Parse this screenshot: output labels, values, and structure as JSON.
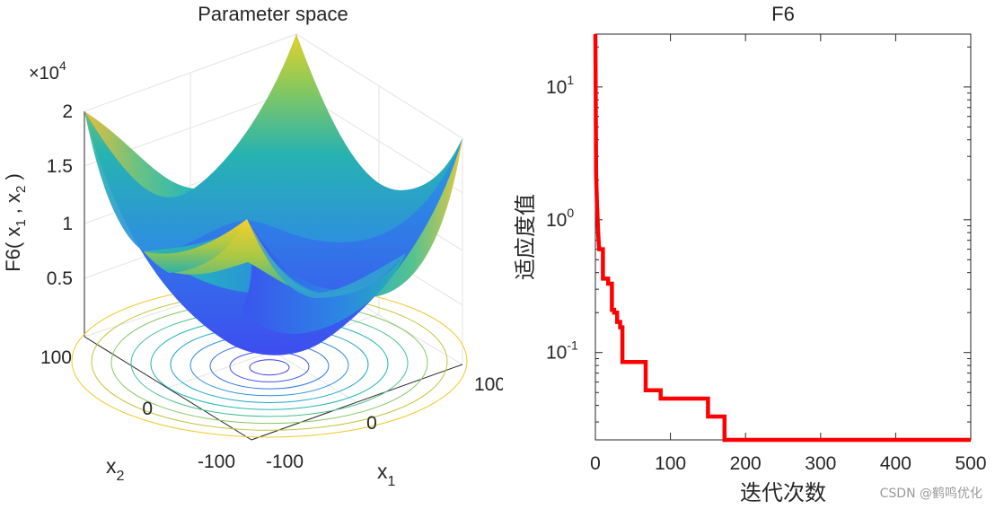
{
  "chart_data": [
    {
      "type": "surface",
      "title": "Parameter space",
      "zlabel": "F6( x_1 , x_2 )",
      "xlabel": "x_1",
      "ylabel": "x_2",
      "z_exponent": "×10^4",
      "z_ticks": [
        "0.5",
        "1",
        "1.5",
        "2"
      ],
      "x_ticks": [
        "-100",
        "0",
        "100"
      ],
      "y_ticks": [
        "-100",
        "0",
        "100"
      ],
      "xlim": [
        -100,
        100
      ],
      "ylim": [
        -100,
        100
      ],
      "zlim": [
        0,
        20000
      ],
      "function": "sum of squares (x1^2 + x2^2)",
      "contour_levels": 10,
      "colormap": "parula"
    },
    {
      "type": "line",
      "title": "F6",
      "xlabel": "迭代次数",
      "ylabel": "适应度值",
      "yscale": "log",
      "xlim": [
        0,
        500
      ],
      "ylim": [
        0.022,
        25
      ],
      "x_ticks": [
        "0",
        "100",
        "200",
        "300",
        "400",
        "500"
      ],
      "y_ticks": [
        {
          "base": "10",
          "exp": "-1",
          "value": 0.1
        },
        {
          "base": "10",
          "exp": "0",
          "value": 1
        },
        {
          "base": "10",
          "exp": "1",
          "value": 10
        }
      ],
      "series_color": "#ff0000",
      "points": [
        [
          0,
          25
        ],
        [
          1,
          2.2
        ],
        [
          2,
          1.35
        ],
        [
          3,
          1.0
        ],
        [
          4,
          0.75
        ],
        [
          5,
          0.6
        ],
        [
          10,
          0.6
        ],
        [
          10,
          0.36
        ],
        [
          17,
          0.36
        ],
        [
          17,
          0.33
        ],
        [
          22,
          0.33
        ],
        [
          22,
          0.21
        ],
        [
          25,
          0.21
        ],
        [
          25,
          0.2
        ],
        [
          29,
          0.2
        ],
        [
          29,
          0.17
        ],
        [
          33,
          0.17
        ],
        [
          33,
          0.155
        ],
        [
          36,
          0.155
        ],
        [
          36,
          0.085
        ],
        [
          67,
          0.085
        ],
        [
          67,
          0.052
        ],
        [
          87,
          0.052
        ],
        [
          87,
          0.045
        ],
        [
          150,
          0.045
        ],
        [
          150,
          0.033
        ],
        [
          172,
          0.033
        ],
        [
          172,
          0.022
        ],
        [
          500,
          0.022
        ]
      ]
    }
  ],
  "watermark": "CSDN @鹤鸣优化"
}
